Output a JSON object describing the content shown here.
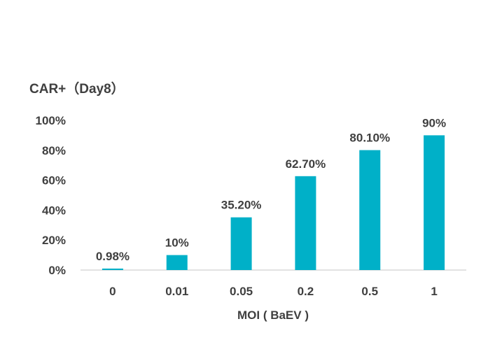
{
  "chart_data": {
    "type": "bar",
    "title": "CAR+（Day8）",
    "xlabel": "MOI ( BaEV )",
    "ylabel": "",
    "categories": [
      "0",
      "0.01",
      "0.05",
      "0.2",
      "0.5",
      "1"
    ],
    "values": [
      0.98,
      10,
      35.2,
      62.7,
      80.1,
      90
    ],
    "data_labels": [
      "0.98%",
      "10%",
      "35.20%",
      "62.70%",
      "80.10%",
      "90%"
    ],
    "y_ticks": [
      "0%",
      "20%",
      "40%",
      "60%",
      "80%",
      "100%"
    ],
    "y_tick_values": [
      0,
      20,
      40,
      60,
      80,
      100
    ],
    "ylim": [
      0,
      100
    ],
    "grid": false,
    "legend": "none",
    "bar_color": "#00b0c8",
    "axis_color": "#d9d9d9",
    "text_color": "#3f3f3f"
  }
}
